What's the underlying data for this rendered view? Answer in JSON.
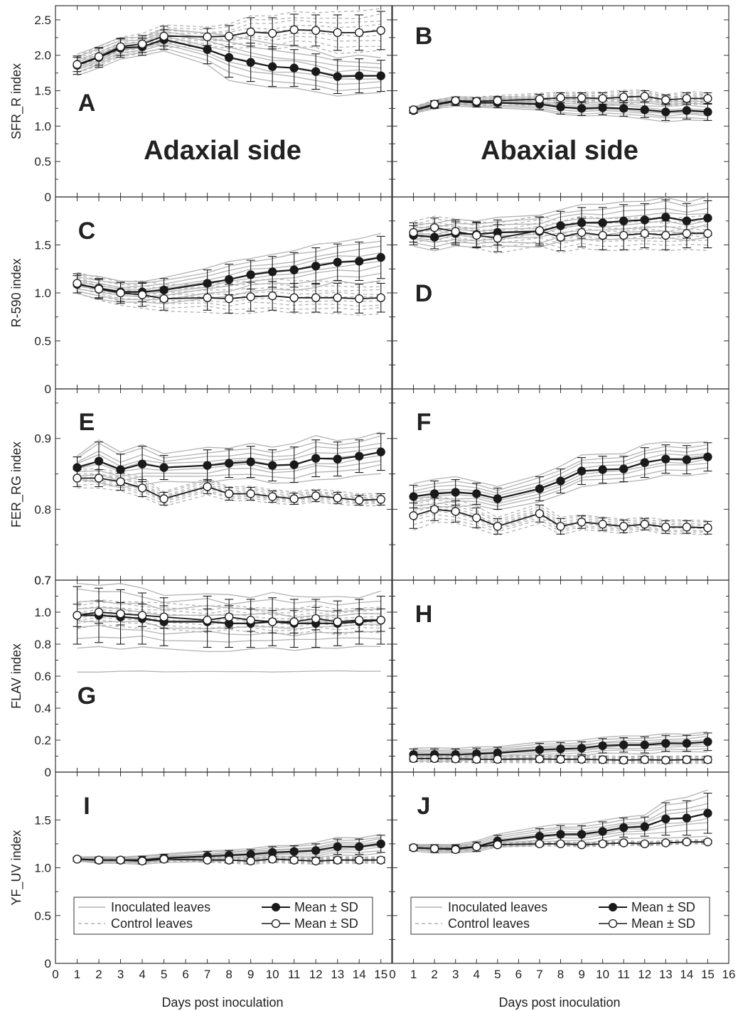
{
  "figure": {
    "x_axis_label": "Days post inoculation",
    "side_labels": {
      "left": "Adaxial side",
      "right": "Abaxial side"
    },
    "legend": {
      "inoculated_label": "Inoculated leaves",
      "control_label": "Control leaves",
      "mean_inoculated_label": "Mean ± SD",
      "mean_control_label": "Mean ± SD"
    },
    "colors": {
      "individual": "#b3b3b3",
      "mean": "#1a1a1a",
      "axis": "#333333"
    }
  },
  "chart_data": [
    {
      "panel": "A",
      "type": "line",
      "side": "Adaxial side",
      "ylabel": "SFR_R index",
      "ylim": [
        0,
        2.7
      ],
      "yticks": [
        "0",
        "0.5",
        "1.0",
        "1.5",
        "2.0",
        "2.5"
      ],
      "ytick_values": [
        0,
        0.5,
        1.0,
        1.5,
        2.0,
        2.5
      ],
      "xlim": [
        0,
        15.5
      ],
      "xticks": [],
      "legend": false,
      "x": [
        1,
        2,
        3,
        4,
        5,
        7,
        8,
        9,
        10,
        11,
        12,
        13,
        14,
        15
      ],
      "series": [
        {
          "kind": "inoculated",
          "mean": [
            1.86,
            1.97,
            2.1,
            2.12,
            2.22,
            2.08,
            1.97,
            1.9,
            1.84,
            1.82,
            1.77,
            1.7,
            1.71,
            1.71
          ],
          "sd": [
            0.13,
            0.14,
            0.13,
            0.12,
            0.14,
            0.2,
            0.28,
            0.27,
            0.28,
            0.26,
            0.25,
            0.24,
            0.24,
            0.22
          ]
        },
        {
          "kind": "control",
          "mean": [
            1.87,
            1.98,
            2.12,
            2.16,
            2.27,
            2.26,
            2.27,
            2.33,
            2.31,
            2.36,
            2.35,
            2.32,
            2.32,
            2.35
          ],
          "sd": [
            0.1,
            0.12,
            0.12,
            0.12,
            0.14,
            0.12,
            0.15,
            0.2,
            0.22,
            0.22,
            0.22,
            0.25,
            0.25,
            0.27
          ]
        }
      ]
    },
    {
      "panel": "B",
      "type": "line",
      "side": "Abaxial side",
      "ylabel": "",
      "ylim": [
        0,
        2.7
      ],
      "yticks": [],
      "ytick_values": [
        0,
        0.5,
        1.0,
        1.5,
        2.0,
        2.5
      ],
      "xlim": [
        0,
        16
      ],
      "xticks": [],
      "legend": false,
      "x": [
        1,
        2,
        3,
        4,
        5,
        7,
        8,
        9,
        10,
        11,
        12,
        13,
        14,
        15
      ],
      "series": [
        {
          "kind": "inoculated",
          "mean": [
            1.22,
            1.3,
            1.35,
            1.33,
            1.33,
            1.31,
            1.27,
            1.25,
            1.26,
            1.25,
            1.23,
            1.2,
            1.22,
            1.2
          ],
          "sd": [
            0.04,
            0.05,
            0.06,
            0.06,
            0.07,
            0.08,
            0.1,
            0.1,
            0.1,
            0.11,
            0.11,
            0.12,
            0.12,
            0.12
          ]
        },
        {
          "kind": "control",
          "mean": [
            1.23,
            1.31,
            1.36,
            1.35,
            1.36,
            1.38,
            1.4,
            1.4,
            1.39,
            1.41,
            1.42,
            1.37,
            1.39,
            1.39
          ],
          "sd": [
            0.04,
            0.05,
            0.05,
            0.05,
            0.06,
            0.07,
            0.07,
            0.07,
            0.08,
            0.08,
            0.08,
            0.07,
            0.08,
            0.08
          ]
        }
      ]
    },
    {
      "panel": "C",
      "type": "line",
      "side": "Adaxial side",
      "ylabel": "R-590 index",
      "ylim": [
        0,
        2.0
      ],
      "yticks": [
        "0",
        "0.5",
        "1.0",
        "1.5"
      ],
      "ytick_values": [
        0,
        0.5,
        1.0,
        1.5
      ],
      "xlim": [
        0,
        15.5
      ],
      "xticks": [],
      "legend": false,
      "x": [
        1,
        2,
        3,
        4,
        5,
        7,
        8,
        9,
        10,
        11,
        12,
        13,
        14,
        15
      ],
      "series": [
        {
          "kind": "inoculated",
          "mean": [
            1.09,
            1.05,
            1.01,
            1.01,
            1.03,
            1.1,
            1.14,
            1.19,
            1.22,
            1.24,
            1.28,
            1.32,
            1.33,
            1.37
          ],
          "sd": [
            0.09,
            0.1,
            0.1,
            0.1,
            0.12,
            0.14,
            0.16,
            0.15,
            0.16,
            0.18,
            0.19,
            0.19,
            0.2,
            0.22
          ]
        },
        {
          "kind": "control",
          "mean": [
            1.1,
            1.04,
            1.0,
            0.98,
            0.94,
            0.95,
            0.94,
            0.96,
            0.97,
            0.95,
            0.95,
            0.95,
            0.94,
            0.95
          ],
          "sd": [
            0.1,
            0.1,
            0.11,
            0.12,
            0.12,
            0.13,
            0.15,
            0.15,
            0.15,
            0.15,
            0.15,
            0.15,
            0.15,
            0.15
          ]
        }
      ]
    },
    {
      "panel": "D",
      "type": "line",
      "side": "Abaxial side",
      "ylabel": "",
      "ylim": [
        0,
        2.0
      ],
      "yticks": [],
      "ytick_values": [
        0,
        0.5,
        1.0,
        1.5
      ],
      "xlim": [
        0,
        16
      ],
      "xticks": [],
      "legend": false,
      "x": [
        1,
        2,
        3,
        4,
        5,
        7,
        8,
        9,
        10,
        11,
        12,
        13,
        14,
        15
      ],
      "series": [
        {
          "kind": "inoculated",
          "mean": [
            1.6,
            1.58,
            1.62,
            1.61,
            1.63,
            1.64,
            1.7,
            1.73,
            1.73,
            1.75,
            1.76,
            1.79,
            1.75,
            1.78
          ],
          "sd": [
            0.1,
            0.12,
            0.12,
            0.13,
            0.13,
            0.15,
            0.15,
            0.16,
            0.16,
            0.17,
            0.17,
            0.18,
            0.18,
            0.18
          ]
        },
        {
          "kind": "control",
          "mean": [
            1.63,
            1.68,
            1.64,
            1.6,
            1.57,
            1.65,
            1.58,
            1.63,
            1.6,
            1.6,
            1.62,
            1.6,
            1.62,
            1.62
          ],
          "sd": [
            0.1,
            0.1,
            0.12,
            0.13,
            0.14,
            0.14,
            0.14,
            0.15,
            0.15,
            0.15,
            0.15,
            0.15,
            0.15,
            0.15
          ]
        }
      ]
    },
    {
      "panel": "E",
      "type": "line",
      "side": "Adaxial side",
      "ylabel": "FER_RG index",
      "ylim": [
        0.7,
        0.97
      ],
      "yticks": [
        "0.7",
        "0.8",
        "0.9"
      ],
      "ytick_values": [
        0.7,
        0.8,
        0.9
      ],
      "xlim": [
        0,
        15.5
      ],
      "xticks": [],
      "legend": false,
      "x": [
        1,
        2,
        3,
        4,
        5,
        7,
        8,
        9,
        10,
        11,
        12,
        13,
        14,
        15
      ],
      "series": [
        {
          "kind": "inoculated",
          "mean": [
            0.859,
            0.868,
            0.856,
            0.864,
            0.859,
            0.862,
            0.865,
            0.867,
            0.862,
            0.863,
            0.872,
            0.871,
            0.875,
            0.881
          ],
          "sd": [
            0.015,
            0.027,
            0.022,
            0.025,
            0.017,
            0.022,
            0.02,
            0.022,
            0.022,
            0.025,
            0.026,
            0.024,
            0.023,
            0.026
          ]
        },
        {
          "kind": "control",
          "mean": [
            0.844,
            0.844,
            0.839,
            0.83,
            0.815,
            0.832,
            0.822,
            0.822,
            0.818,
            0.815,
            0.819,
            0.816,
            0.813,
            0.814
          ],
          "sd": [
            0.012,
            0.012,
            0.012,
            0.012,
            0.009,
            0.01,
            0.009,
            0.009,
            0.008,
            0.008,
            0.008,
            0.008,
            0.007,
            0.008
          ]
        }
      ]
    },
    {
      "panel": "F",
      "type": "line",
      "side": "Abaxial side",
      "ylabel": "",
      "ylim": [
        0.7,
        0.97
      ],
      "yticks": [],
      "ytick_values": [
        0.7,
        0.8,
        0.9
      ],
      "xlim": [
        0,
        16
      ],
      "xticks": [],
      "legend": false,
      "x": [
        1,
        2,
        3,
        4,
        5,
        7,
        8,
        9,
        10,
        11,
        12,
        13,
        14,
        15
      ],
      "series": [
        {
          "kind": "inoculated",
          "mean": [
            0.818,
            0.822,
            0.824,
            0.822,
            0.815,
            0.829,
            0.84,
            0.854,
            0.856,
            0.857,
            0.866,
            0.871,
            0.87,
            0.874
          ],
          "sd": [
            0.016,
            0.018,
            0.018,
            0.015,
            0.015,
            0.017,
            0.017,
            0.019,
            0.019,
            0.018,
            0.021,
            0.02,
            0.02,
            0.02
          ]
        },
        {
          "kind": "control",
          "mean": [
            0.791,
            0.8,
            0.797,
            0.788,
            0.776,
            0.794,
            0.776,
            0.782,
            0.779,
            0.776,
            0.779,
            0.775,
            0.775,
            0.774
          ],
          "sd": [
            0.018,
            0.016,
            0.015,
            0.014,
            0.011,
            0.012,
            0.011,
            0.009,
            0.009,
            0.009,
            0.008,
            0.009,
            0.009,
            0.009
          ]
        }
      ]
    },
    {
      "panel": "G",
      "type": "line",
      "side": "Adaxial side",
      "ylabel": "FLAV index",
      "ylim": [
        0,
        1.2
      ],
      "yticks": [
        "0",
        "0.2",
        "0.4",
        "0.6",
        "0.8",
        "1.0"
      ],
      "ytick_values": [
        0,
        0.2,
        0.4,
        0.6,
        0.8,
        1.0
      ],
      "top_label": "0.7",
      "xlim": [
        0,
        15.5
      ],
      "xticks": [],
      "legend": false,
      "x": [
        1,
        2,
        3,
        4,
        5,
        7,
        8,
        9,
        10,
        11,
        12,
        13,
        14,
        15
      ],
      "series": [
        {
          "kind": "inoculated",
          "mean": [
            0.98,
            0.98,
            0.97,
            0.96,
            0.94,
            0.94,
            0.93,
            0.93,
            0.94,
            0.93,
            0.93,
            0.93,
            0.94,
            0.95
          ],
          "sd": [
            0.18,
            0.17,
            0.17,
            0.16,
            0.15,
            0.16,
            0.15,
            0.15,
            0.15,
            0.15,
            0.15,
            0.14,
            0.14,
            0.15
          ]
        },
        {
          "kind": "control",
          "mean": [
            0.98,
            1.0,
            0.99,
            0.98,
            0.97,
            0.95,
            0.97,
            0.95,
            0.94,
            0.94,
            0.96,
            0.94,
            0.95,
            0.95
          ],
          "sd": [
            0.07,
            0.07,
            0.07,
            0.07,
            0.07,
            0.07,
            0.07,
            0.07,
            0.07,
            0.07,
            0.07,
            0.07,
            0.07,
            0.07
          ]
        }
      ]
    },
    {
      "panel": "H",
      "type": "line",
      "side": "Abaxial side",
      "ylabel": "",
      "ylim": [
        0,
        1.2
      ],
      "yticks": [],
      "ytick_values": [
        0,
        0.2,
        0.4,
        0.6,
        0.8,
        1.0
      ],
      "xlim": [
        0,
        16
      ],
      "xticks": [],
      "legend": false,
      "x": [
        1,
        2,
        3,
        4,
        5,
        7,
        8,
        9,
        10,
        11,
        12,
        13,
        14,
        15
      ],
      "series": [
        {
          "kind": "inoculated",
          "mean": [
            0.11,
            0.11,
            0.11,
            0.115,
            0.12,
            0.14,
            0.145,
            0.15,
            0.165,
            0.17,
            0.17,
            0.18,
            0.18,
            0.19
          ],
          "sd": [
            0.035,
            0.035,
            0.035,
            0.035,
            0.035,
            0.04,
            0.04,
            0.04,
            0.045,
            0.045,
            0.05,
            0.05,
            0.05,
            0.055
          ]
        },
        {
          "kind": "control",
          "mean": [
            0.085,
            0.085,
            0.083,
            0.08,
            0.08,
            0.082,
            0.08,
            0.08,
            0.078,
            0.075,
            0.078,
            0.075,
            0.078,
            0.078
          ],
          "sd": [
            0.02,
            0.02,
            0.02,
            0.02,
            0.02,
            0.02,
            0.02,
            0.02,
            0.02,
            0.02,
            0.02,
            0.02,
            0.02,
            0.02
          ]
        }
      ]
    },
    {
      "panel": "I",
      "type": "line",
      "side": "Adaxial side",
      "ylabel": "YF_UV index",
      "ylim": [
        0,
        2.0
      ],
      "yticks": [
        "0",
        "0.5",
        "1.0",
        "1.5"
      ],
      "ytick_values": [
        0,
        0.5,
        1.0,
        1.5
      ],
      "xlim": [
        0,
        15.5
      ],
      "xticks": [
        "0",
        "1",
        "2",
        "3",
        "4",
        "5",
        "6",
        "7",
        "8",
        "9",
        "10",
        "11",
        "12",
        "13",
        "14",
        "15"
      ],
      "legend": true,
      "x": [
        1,
        2,
        3,
        4,
        5,
        7,
        8,
        9,
        10,
        11,
        12,
        13,
        14,
        15
      ],
      "series": [
        {
          "kind": "inoculated",
          "mean": [
            1.09,
            1.08,
            1.08,
            1.08,
            1.1,
            1.12,
            1.13,
            1.14,
            1.16,
            1.17,
            1.18,
            1.22,
            1.22,
            1.25
          ],
          "sd": [
            0.02,
            0.03,
            0.03,
            0.04,
            0.04,
            0.05,
            0.05,
            0.05,
            0.06,
            0.06,
            0.07,
            0.08,
            0.08,
            0.09
          ]
        },
        {
          "kind": "control",
          "mean": [
            1.09,
            1.08,
            1.08,
            1.07,
            1.09,
            1.08,
            1.08,
            1.07,
            1.09,
            1.08,
            1.07,
            1.08,
            1.08,
            1.08
          ],
          "sd": [
            0.02,
            0.02,
            0.02,
            0.02,
            0.02,
            0.02,
            0.03,
            0.03,
            0.03,
            0.03,
            0.03,
            0.03,
            0.03,
            0.03
          ]
        }
      ]
    },
    {
      "panel": "J",
      "type": "line",
      "side": "Abaxial side",
      "ylabel": "",
      "ylim": [
        0,
        2.0
      ],
      "yticks": [],
      "ytick_values": [
        0,
        0.5,
        1.0,
        1.5
      ],
      "xlim": [
        0,
        16
      ],
      "xticks": [
        "0",
        "1",
        "2",
        "3",
        "4",
        "5",
        "6",
        "7",
        "8",
        "9",
        "10",
        "11",
        "12",
        "13",
        "14",
        "15",
        "16"
      ],
      "legend": true,
      "x": [
        1,
        2,
        3,
        4,
        5,
        7,
        8,
        9,
        10,
        11,
        12,
        13,
        14,
        15
      ],
      "series": [
        {
          "kind": "inoculated",
          "mean": [
            1.21,
            1.2,
            1.2,
            1.22,
            1.28,
            1.33,
            1.35,
            1.35,
            1.38,
            1.42,
            1.43,
            1.51,
            1.52,
            1.57
          ],
          "sd": [
            0.03,
            0.04,
            0.04,
            0.05,
            0.06,
            0.08,
            0.09,
            0.09,
            0.1,
            0.1,
            0.1,
            0.17,
            0.18,
            0.21
          ]
        },
        {
          "kind": "control",
          "mean": [
            1.21,
            1.2,
            1.19,
            1.22,
            1.24,
            1.25,
            1.25,
            1.24,
            1.25,
            1.26,
            1.25,
            1.26,
            1.27,
            1.27
          ],
          "sd": [
            0.02,
            0.02,
            0.02,
            0.02,
            0.02,
            0.02,
            0.02,
            0.02,
            0.02,
            0.02,
            0.02,
            0.02,
            0.02,
            0.02
          ]
        }
      ]
    }
  ]
}
